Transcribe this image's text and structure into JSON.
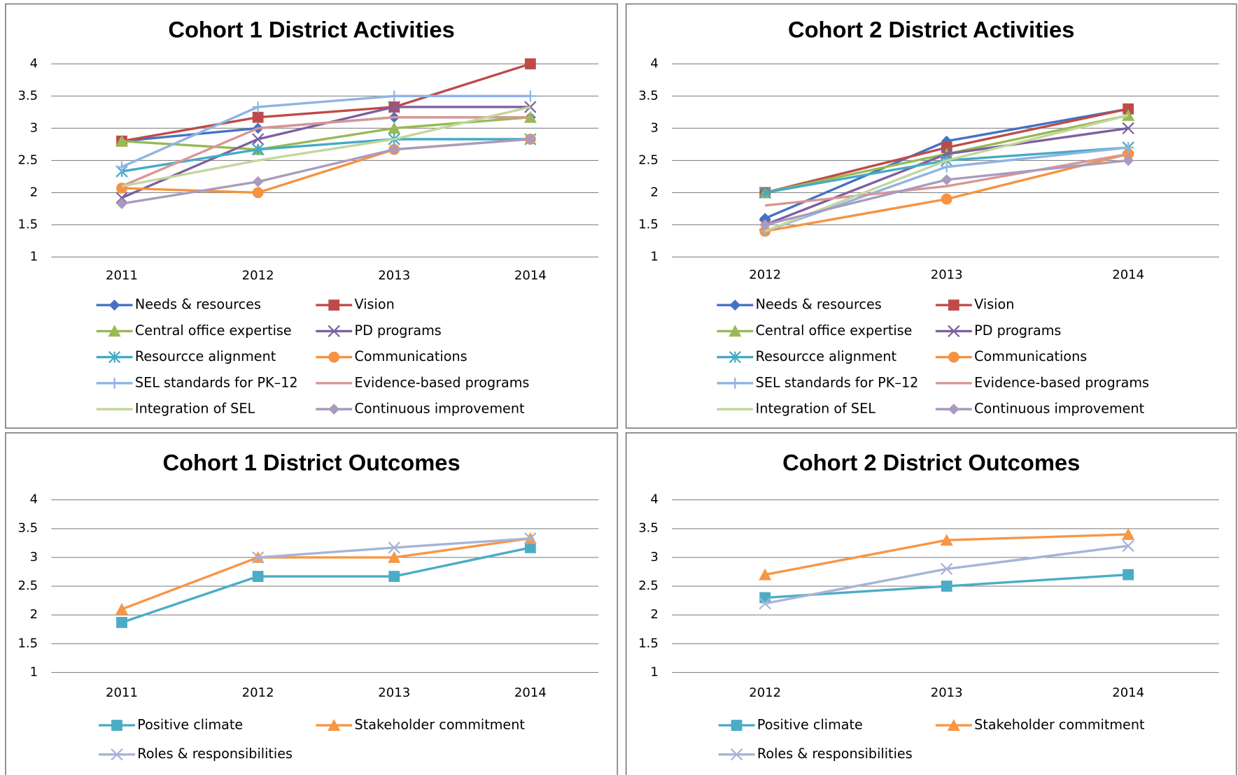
{
  "chart_data": [
    {
      "type": "line",
      "title": "Cohort 1 District Activities",
      "categories": [
        "2011",
        "2012",
        "2013",
        "2014"
      ],
      "ylim": [
        1,
        4
      ],
      "yticks": [
        1,
        1.5,
        2,
        2.5,
        3,
        3.5,
        4
      ],
      "grid": true,
      "series": [
        {
          "name": "Needs & resources",
          "color": "#4472c4",
          "marker": "diamond",
          "values": [
            2.8,
            3,
            3.17,
            3.17
          ]
        },
        {
          "name": "Vision",
          "color": "#be4b48",
          "marker": "square",
          "values": [
            2.8,
            3.17,
            3.33,
            4
          ]
        },
        {
          "name": "Central office expertise",
          "color": "#98b954",
          "marker": "triangle",
          "values": [
            2.8,
            2.67,
            3,
            3.17
          ]
        },
        {
          "name": "PD programs",
          "color": "#7d60a0",
          "marker": "x",
          "values": [
            1.92,
            2.83,
            3.33,
            3.33
          ]
        },
        {
          "name": "Resourcce alignment",
          "color": "#46aac5",
          "marker": "star",
          "values": [
            2.33,
            2.67,
            2.83,
            2.83
          ]
        },
        {
          "name": "Communications",
          "color": "#f69240",
          "marker": "circle",
          "values": [
            2.07,
            2,
            2.67,
            2.83
          ]
        },
        {
          "name": "SEL standards for PK–12",
          "color": "#8eb4e3",
          "marker": "plus",
          "values": [
            2.4,
            3.33,
            3.5,
            3.5
          ]
        },
        {
          "name": "Evidence-based programs",
          "color": "#d99694",
          "values": [
            2.1,
            3,
            3.17,
            3.17
          ]
        },
        {
          "name": "Integration of SEL",
          "color": "#c3d69b",
          "values": [
            2.1,
            2.5,
            2.83,
            3.33
          ]
        },
        {
          "name": "Continuous improvement",
          "color": "#a99bbd",
          "marker": "diamond",
          "values": [
            1.83,
            2.17,
            2.67,
            2.83
          ]
        }
      ]
    },
    {
      "type": "line",
      "title": "Cohort 2 District Activities",
      "categories": [
        "2012",
        "2013",
        "2014"
      ],
      "ylim": [
        1,
        4
      ],
      "yticks": [
        1,
        1.5,
        2,
        2.5,
        3,
        3.5,
        4
      ],
      "grid": true,
      "series": [
        {
          "name": "Needs & resources",
          "color": "#4472c4",
          "marker": "diamond",
          "values": [
            1.6,
            2.8,
            3.3
          ]
        },
        {
          "name": "Vision",
          "color": "#be4b48",
          "marker": "square",
          "values": [
            2,
            2.7,
            3.3
          ]
        },
        {
          "name": "Central office expertise",
          "color": "#98b954",
          "marker": "triangle",
          "values": [
            2,
            2.6,
            3.2
          ]
        },
        {
          "name": "PD programs",
          "color": "#7d60a0",
          "marker": "x",
          "values": [
            1.5,
            2.6,
            3
          ]
        },
        {
          "name": "Resourcce alignment",
          "color": "#46aac5",
          "marker": "star",
          "values": [
            2,
            2.5,
            2.7
          ]
        },
        {
          "name": "Communications",
          "color": "#f69240",
          "marker": "circle",
          "values": [
            1.4,
            1.9,
            2.6
          ]
        },
        {
          "name": "SEL standards for PK–12",
          "color": "#8eb4e3",
          "marker": "plus",
          "values": [
            1.4,
            2.4,
            2.7
          ]
        },
        {
          "name": "Evidence-based programs",
          "color": "#d99694",
          "values": [
            1.8,
            2.1,
            2.6
          ]
        },
        {
          "name": "Integration of SEL",
          "color": "#c3d69b",
          "values": [
            1.4,
            2.5,
            3.2
          ]
        },
        {
          "name": "Continuous improvement",
          "color": "#a99bbd",
          "marker": "diamond",
          "values": [
            1.5,
            2.2,
            2.5
          ]
        }
      ]
    },
    {
      "type": "line",
      "title": "Cohort 1 District Outcomes",
      "categories": [
        "2011",
        "2012",
        "2013",
        "2014"
      ],
      "ylim": [
        1,
        4
      ],
      "yticks": [
        1,
        1.5,
        2,
        2.5,
        3,
        3.5,
        4
      ],
      "grid": true,
      "series": [
        {
          "name": "Positive climate",
          "color": "#4bacc6",
          "marker": "square",
          "values": [
            1.87,
            2.67,
            2.67,
            3.17
          ]
        },
        {
          "name": "Stakeholder commitment",
          "color": "#f79646",
          "marker": "triangle",
          "values": [
            2.1,
            3,
            3,
            3.33
          ]
        },
        {
          "name": "Roles & responsibilities",
          "color": "#a6b4d8",
          "marker": "x",
          "values": [
            null,
            3,
            3.17,
            3.33
          ]
        }
      ]
    },
    {
      "type": "line",
      "title": "Cohort 2 District Outcomes",
      "categories": [
        "2012",
        "2013",
        "2014"
      ],
      "ylim": [
        1,
        4
      ],
      "yticks": [
        1,
        1.5,
        2,
        2.5,
        3,
        3.5,
        4
      ],
      "grid": true,
      "series": [
        {
          "name": "Positive climate",
          "color": "#4bacc6",
          "marker": "square",
          "values": [
            2.3,
            2.5,
            2.7
          ]
        },
        {
          "name": "Stakeholder commitment",
          "color": "#f79646",
          "marker": "triangle",
          "values": [
            2.7,
            3.3,
            3.4
          ]
        },
        {
          "name": "Roles & responsibilities",
          "color": "#a6b4d8",
          "marker": "x",
          "values": [
            2.2,
            2.8,
            3.2
          ]
        }
      ]
    }
  ]
}
